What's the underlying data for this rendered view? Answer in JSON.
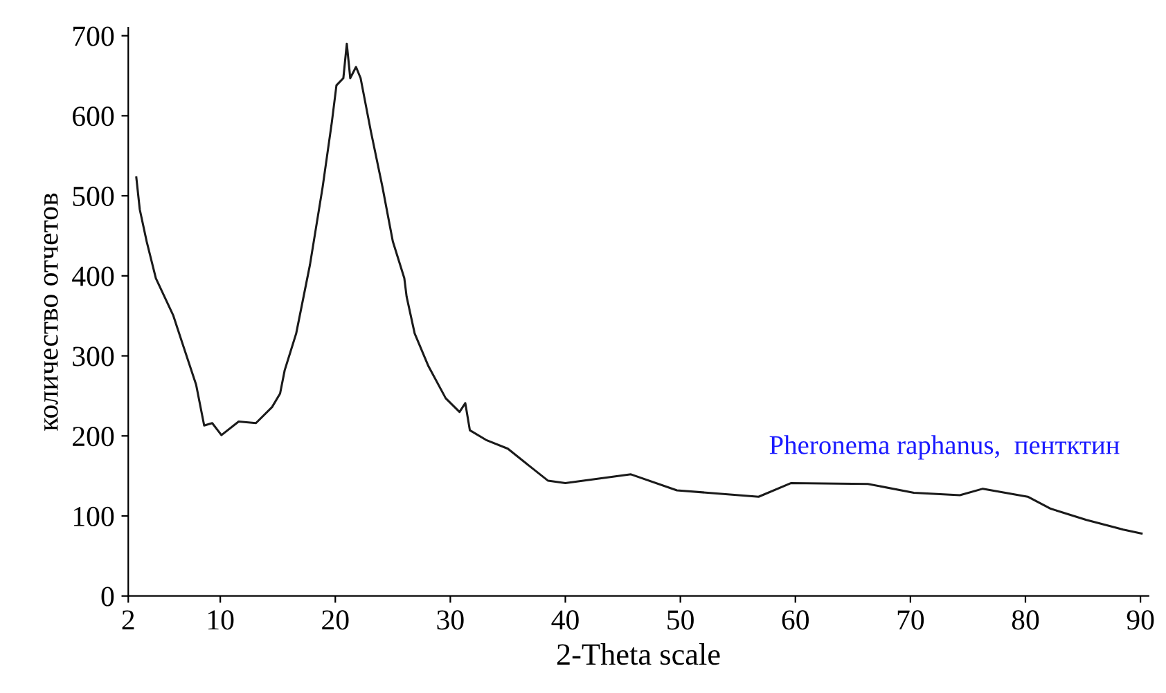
{
  "chart_data": {
    "type": "line",
    "xlabel": "2-Theta scale",
    "ylabel": "количество отчетов",
    "annotations": [
      "Pheronema raphanus,  пентктин"
    ],
    "xlim": [
      2,
      90.7
    ],
    "xticks": [
      2,
      10,
      20,
      30,
      40,
      50,
      60,
      70,
      80,
      90
    ],
    "ylim": [
      0,
      710
    ],
    "yticks": [
      0,
      100,
      200,
      300,
      400,
      500,
      600,
      700
    ],
    "grid": false,
    "legend": false,
    "marker": "none",
    "line_style": "solid",
    "series": [
      {
        "color": "#1a1a1a",
        "x": [
          2.7,
          3.0,
          3.6,
          4.4,
          5.9,
          6.7,
          7.9,
          8.6,
          9.3,
          10.1,
          11.6,
          13.1,
          14.5,
          15.2,
          15.6,
          16.6,
          17.8,
          18.9,
          19.7,
          20.1,
          20.7,
          21.0,
          21.3,
          21.8,
          22.2,
          23.1,
          24.1,
          25.0,
          26.0,
          26.2,
          26.9,
          28.1,
          29.6,
          30.8,
          31.3,
          31.7,
          33.1,
          35.0,
          37.0,
          38.5,
          40.0,
          45.7,
          49.7,
          56.8,
          59.6,
          66.3,
          70.3,
          74.3,
          76.3,
          80.2,
          82.2,
          85.3,
          88.5,
          90.1
        ],
        "values": [
          523,
          483,
          443,
          397,
          351,
          316,
          264,
          213,
          216,
          201,
          218,
          216,
          236,
          253,
          282,
          328,
          414,
          511,
          592,
          638,
          647,
          690,
          647,
          661,
          647,
          580,
          511,
          443,
          397,
          374,
          328,
          287,
          247,
          230,
          241,
          207,
          195,
          184,
          161,
          144,
          141,
          152,
          132,
          124,
          141,
          140,
          129,
          126,
          134,
          124,
          109,
          95,
          83,
          78
        ]
      }
    ]
  }
}
